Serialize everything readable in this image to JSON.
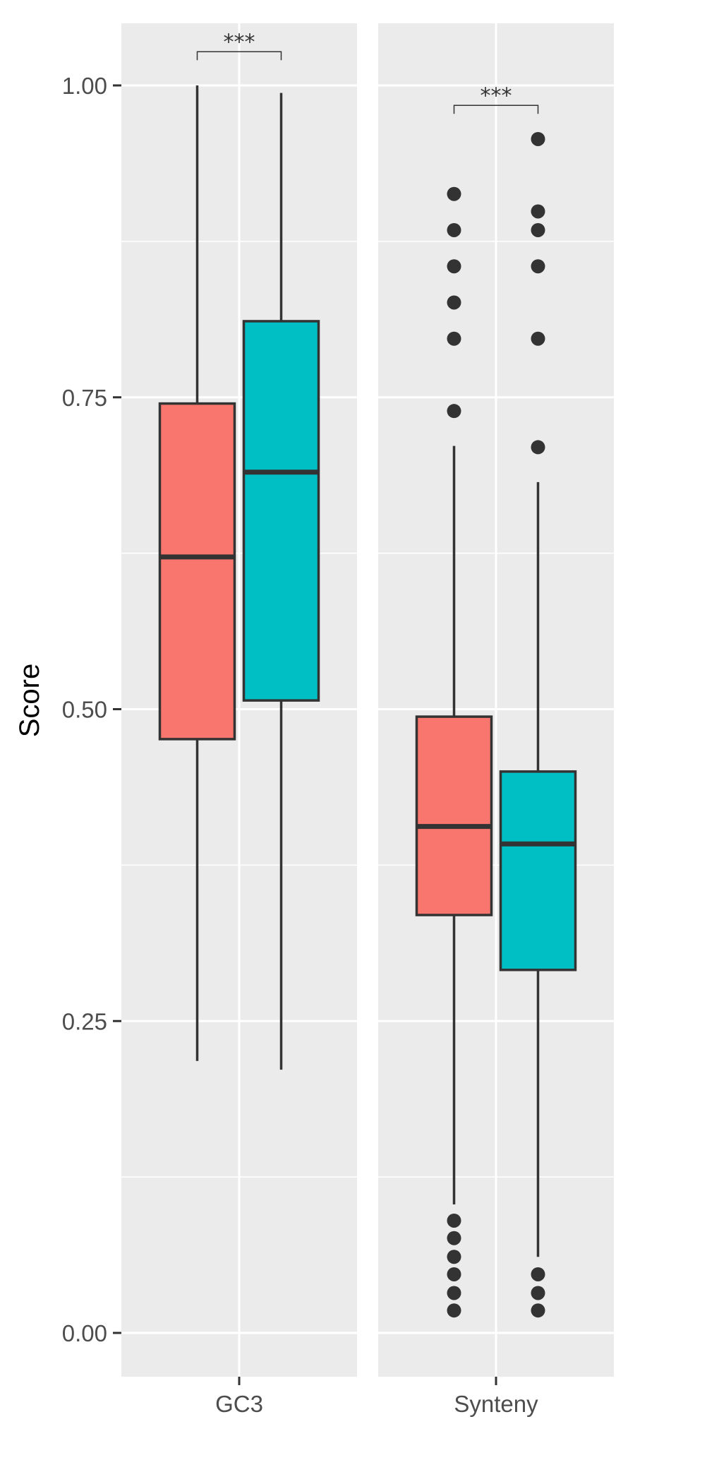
{
  "chart_data": {
    "type": "box",
    "ylabel": "Score",
    "xlabel": "",
    "ylim": [
      -0.035,
      1.05
    ],
    "yticks": [
      0,
      0.25,
      0.5,
      0.75,
      1.0
    ],
    "ytick_labels": [
      "0.00",
      "0.25",
      "0.50",
      "0.75",
      "1.00"
    ],
    "y_minor_gridlines": [
      0.125,
      0.375,
      0.625,
      0.875
    ],
    "categories": [
      "GC3",
      "Synteny"
    ],
    "grid": true,
    "legend": "none",
    "series": [
      {
        "color": "#F8766D",
        "boxes": [
          {
            "category": "GC3",
            "whisker_low": 0.218,
            "q1": 0.476,
            "median": 0.622,
            "q3": 0.745,
            "whisker_high": 1.0,
            "outliers": []
          },
          {
            "category": "Synteny",
            "whisker_low": 0.103,
            "q1": 0.335,
            "median": 0.406,
            "q3": 0.494,
            "whisker_high": 0.711,
            "outliers": [
              0.018,
              0.032,
              0.047,
              0.061,
              0.076,
              0.09,
              0.739,
              0.797,
              0.826,
              0.855,
              0.884,
              0.913
            ]
          }
        ]
      },
      {
        "color": "#00BFC4",
        "boxes": [
          {
            "category": "GC3",
            "whisker_low": 0.211,
            "q1": 0.507,
            "median": 0.69,
            "q3": 0.811,
            "whisker_high": 0.994,
            "outliers": []
          },
          {
            "category": "Synteny",
            "whisker_low": 0.061,
            "q1": 0.291,
            "median": 0.392,
            "q3": 0.45,
            "whisker_high": 0.682,
            "outliers": [
              0.018,
              0.032,
              0.047,
              0.71,
              0.797,
              0.855,
              0.884,
              0.899,
              0.957
            ]
          }
        ]
      }
    ],
    "annotations": [
      {
        "category": "GC3",
        "text": "***",
        "y": 1.027
      },
      {
        "category": "Synteny",
        "text": "***",
        "y": 0.984
      }
    ]
  }
}
